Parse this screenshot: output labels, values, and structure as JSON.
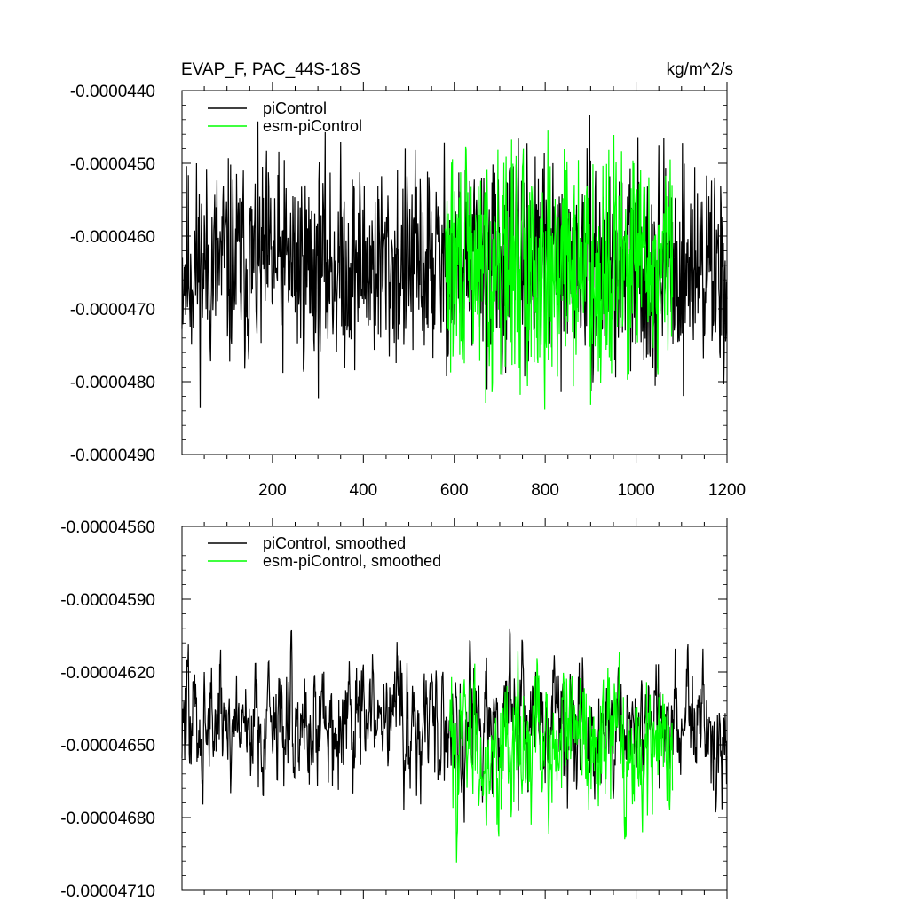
{
  "chart_data": [
    {
      "type": "line",
      "title": "EVAP_F, PAC_44S-18S",
      "units_label": "kg/m^2/s",
      "xlim": [
        1,
        1200
      ],
      "ylim": [
        -4.9e-05,
        -4.4e-05
      ],
      "x_ticks": [
        200,
        400,
        600,
        800,
        1000,
        1200
      ],
      "x_tick_labels": [
        "200",
        "400",
        "600",
        "800",
        "1000",
        "1200"
      ],
      "y_ticks": [
        -4.4e-05,
        -4.5e-05,
        -4.6e-05,
        -4.7e-05,
        -4.8e-05,
        -4.9e-05
      ],
      "y_tick_labels": [
        "-0.0000440",
        "-0.0000450",
        "-0.0000460",
        "-0.0000470",
        "-0.0000480",
        "-0.0000490"
      ],
      "legend_position": "top-left",
      "series": [
        {
          "name": "piControl",
          "color": "#000000",
          "x_start": 1,
          "x_end": 1200,
          "mean": -4.64e-05,
          "amplitude": 1.1e-06,
          "seed": 11
        },
        {
          "name": "esm-piControl",
          "color": "#00ff00",
          "x_start": 580,
          "x_end": 1080,
          "mean": -4.64e-05,
          "amplitude": 1.2e-06,
          "seed": 29
        }
      ]
    },
    {
      "type": "line",
      "xlim": [
        1,
        1200
      ],
      "ylim": [
        -4.71e-05,
        -4.56e-05
      ],
      "x_ticks": [
        200,
        400,
        600,
        800,
        1000,
        1200
      ],
      "y_ticks": [
        -4.56e-05,
        -4.59e-05,
        -4.62e-05,
        -4.65e-05,
        -4.68e-05,
        -4.71e-05
      ],
      "y_tick_labels": [
        "-0.00004560",
        "-0.00004590",
        "-0.00004620",
        "-0.00004650",
        "-0.00004680",
        "-0.00004710"
      ],
      "legend_position": "top-left",
      "series": [
        {
          "name": "piControl, smoothed",
          "color": "#000000",
          "x_start": 1,
          "x_end": 1200,
          "mean": -4.64e-05,
          "amplitude": 3.5e-07,
          "seed": 47
        },
        {
          "name": "esm-piControl, smoothed",
          "color": "#00ff00",
          "x_start": 590,
          "x_end": 1080,
          "mean": -4.65e-05,
          "amplitude": 4e-07,
          "seed": 83
        }
      ]
    }
  ]
}
